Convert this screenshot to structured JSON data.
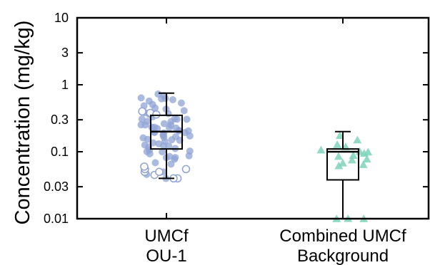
{
  "chart_data": {
    "type": "box",
    "yscale": "log",
    "ylim": [
      0.01,
      10
    ],
    "ylabel": "Concentration (mg/kg)",
    "xlabel": "",
    "title": "",
    "yticks": [
      0.01,
      0.03,
      0.1,
      0.3,
      1,
      3,
      10
    ],
    "ytick_labels": [
      "0.01",
      "0.03",
      "0.1",
      "0.3",
      "1",
      "3",
      "10"
    ],
    "categories": [
      {
        "label_lines": [
          "UMCf",
          "OU-1"
        ]
      },
      {
        "label_lines": [
          "Combined UMCf",
          "Background"
        ]
      }
    ],
    "groups": [
      {
        "box": {
          "whisker_low": 0.04,
          "q1": 0.11,
          "median": 0.2,
          "q3": 0.35,
          "whisker_high": 0.75
        },
        "marker": "circle",
        "color": "#8fa3d4",
        "points_detected": [
          0.04,
          0.045,
          0.05,
          0.06,
          0.065,
          0.07,
          0.075,
          0.08,
          0.08,
          0.085,
          0.09,
          0.09,
          0.1,
          0.1,
          0.1,
          0.11,
          0.11,
          0.12,
          0.12,
          0.12,
          0.13,
          0.13,
          0.14,
          0.14,
          0.15,
          0.15,
          0.15,
          0.16,
          0.16,
          0.17,
          0.17,
          0.18,
          0.18,
          0.19,
          0.19,
          0.2,
          0.2,
          0.2,
          0.21,
          0.21,
          0.22,
          0.22,
          0.23,
          0.23,
          0.24,
          0.25,
          0.25,
          0.26,
          0.27,
          0.28,
          0.29,
          0.3,
          0.3,
          0.31,
          0.32,
          0.34,
          0.35,
          0.37,
          0.38,
          0.4,
          0.42,
          0.45,
          0.48,
          0.5,
          0.52,
          0.55,
          0.58,
          0.6,
          0.62,
          0.65,
          0.7,
          0.75
        ],
        "points_nondetect": [
          0.04,
          0.04,
          0.045,
          0.05,
          0.05,
          0.055,
          0.055,
          0.06,
          0.38,
          0.36,
          0.4
        ]
      },
      {
        "box": {
          "whisker_low": 0.01,
          "q1": 0.038,
          "median": 0.1,
          "q3": 0.11,
          "whisker_high": 0.2
        },
        "marker": "triangle",
        "color": "#7fd3bb",
        "points_detected": [
          0.01,
          0.01,
          0.01,
          0.06,
          0.065,
          0.07,
          0.075,
          0.08,
          0.085,
          0.09,
          0.095,
          0.1,
          0.1,
          0.11,
          0.12,
          0.13,
          0.15,
          0.18
        ]
      }
    ]
  }
}
